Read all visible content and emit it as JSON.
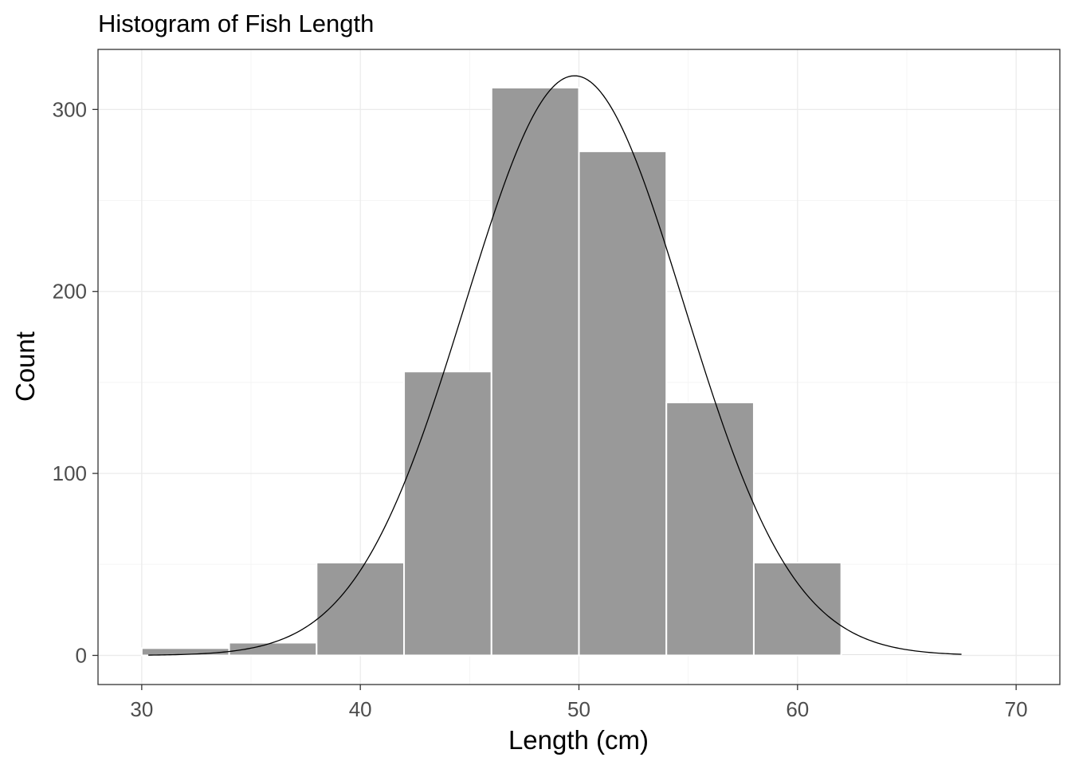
{
  "chart_data": {
    "type": "bar",
    "title": "Histogram of Fish Length",
    "xlabel": "Length (cm)",
    "ylabel": "Count",
    "xlim": [
      28,
      72
    ],
    "ylim": [
      -16,
      333
    ],
    "xticks": [
      30,
      40,
      50,
      60,
      70
    ],
    "yticks": [
      0,
      100,
      200,
      300
    ],
    "grid": true,
    "bin_width": 4,
    "bins": [
      {
        "x0": 30,
        "x1": 34,
        "count": 4
      },
      {
        "x0": 34,
        "x1": 38,
        "count": 7
      },
      {
        "x0": 38,
        "x1": 42,
        "count": 51
      },
      {
        "x0": 42,
        "x1": 46,
        "count": 156
      },
      {
        "x0": 46,
        "x1": 50,
        "count": 312
      },
      {
        "x0": 50,
        "x1": 54,
        "count": 277
      },
      {
        "x0": 54,
        "x1": 58,
        "count": 139
      },
      {
        "x0": 58,
        "x1": 62,
        "count": 51
      },
      {
        "x0": 62,
        "x1": 66,
        "count": 1
      },
      {
        "x0": 66,
        "x1": 70,
        "count": 0
      }
    ],
    "density_curve": {
      "mean": 49.8,
      "sd": 5.0,
      "n": 998,
      "x_range": [
        30.3,
        67.5
      ]
    },
    "colors": {
      "bar_fill": "#999999",
      "bar_stroke": "#ffffff",
      "curve": "#000000",
      "panel_border": "#333333",
      "grid_major": "#ebebeb",
      "grid_minor": "#f5f5f5"
    }
  }
}
